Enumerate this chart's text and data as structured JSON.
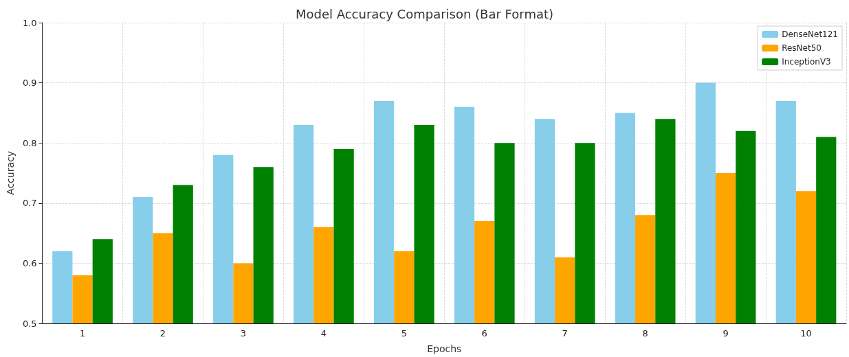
{
  "chart_data": {
    "type": "bar",
    "title": "Model Accuracy Comparison (Bar Format)",
    "xlabel": "Epochs",
    "ylabel": "Accuracy",
    "categories": [
      "1",
      "2",
      "3",
      "4",
      "5",
      "6",
      "7",
      "8",
      "9",
      "10"
    ],
    "series": [
      {
        "name": "DenseNet121",
        "color": "#87ceeb",
        "values": [
          0.62,
          0.71,
          0.78,
          0.83,
          0.87,
          0.86,
          0.84,
          0.85,
          0.9,
          0.87
        ]
      },
      {
        "name": "ResNet50",
        "color": "#ffa500",
        "values": [
          0.58,
          0.65,
          0.6,
          0.66,
          0.62,
          0.67,
          0.61,
          0.68,
          0.75,
          0.72
        ]
      },
      {
        "name": "InceptionV3",
        "color": "#008000",
        "values": [
          0.64,
          0.73,
          0.76,
          0.79,
          0.83,
          0.8,
          0.8,
          0.84,
          0.82,
          0.81
        ]
      }
    ],
    "ylim": [
      0.5,
      1.0
    ],
    "yticks": [
      0.5,
      0.6,
      0.7,
      0.8,
      0.9,
      {
        "value": 1,
        "label": "1.0"
      }
    ],
    "grid": true,
    "legend": "top right"
  }
}
